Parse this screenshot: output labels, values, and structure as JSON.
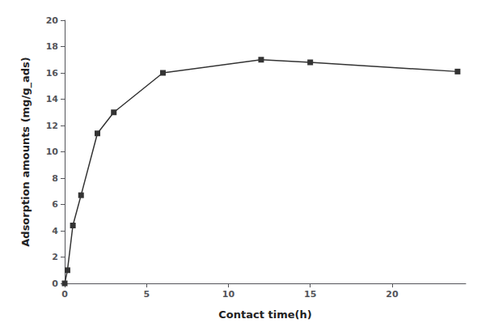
{
  "chart_data": {
    "type": "line",
    "x": [
      0,
      0.17,
      0.5,
      1,
      2,
      3,
      6,
      12,
      15,
      24
    ],
    "values": [
      0,
      1.0,
      4.4,
      6.7,
      11.4,
      13.0,
      16.0,
      17.0,
      16.8,
      16.1
    ],
    "xlabel": "Contact time(h)",
    "ylabel": "Adsorption amounts (mg/g_ads)",
    "xlim": [
      0,
      24.5
    ],
    "ylim": [
      0,
      20
    ],
    "xticks": [
      0,
      5,
      10,
      15,
      20
    ],
    "yticks": [
      0,
      2,
      4,
      6,
      8,
      10,
      12,
      14,
      16,
      18,
      20
    ],
    "color": "#333333",
    "marker": "square",
    "line_style": "solid",
    "grid": false
  }
}
